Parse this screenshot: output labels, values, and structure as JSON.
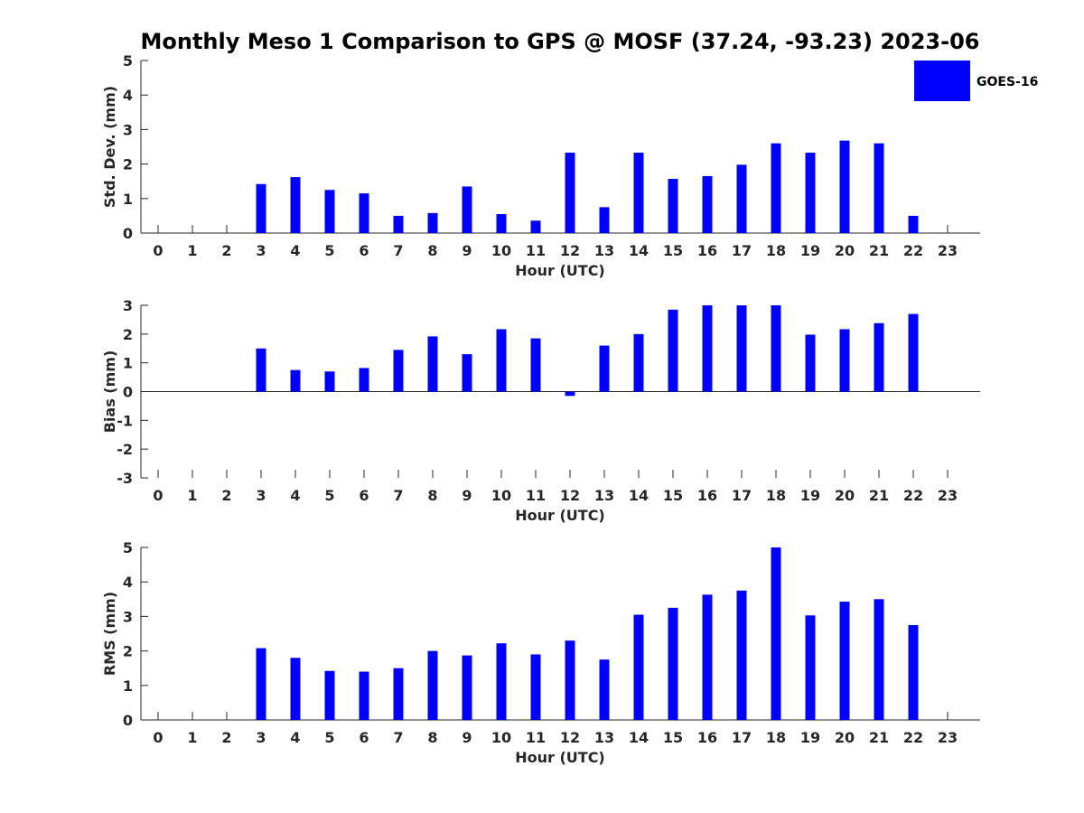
{
  "title": "Monthly Meso 1 Comparison to GPS @ MOSF (37.24, -93.23) 2023-06",
  "legend": {
    "label": "GOES-16",
    "color": "#0000ff",
    "placement": "top-right"
  },
  "bar_color": "#0000ff",
  "chart_data": [
    {
      "type": "bar",
      "xlabel": "Hour (UTC)",
      "ylabel": "Std. Dev. (mm)",
      "ylim": [
        0,
        5
      ],
      "yticks": [
        "0",
        "1",
        "2",
        "3",
        "4",
        "5"
      ],
      "categories": [
        "0",
        "1",
        "2",
        "3",
        "4",
        "5",
        "6",
        "7",
        "8",
        "9",
        "10",
        "11",
        "12",
        "13",
        "14",
        "15",
        "16",
        "17",
        "18",
        "19",
        "20",
        "21",
        "22",
        "23"
      ],
      "values": [
        null,
        null,
        null,
        1.42,
        1.62,
        1.25,
        1.15,
        0.5,
        0.58,
        1.35,
        0.55,
        0.36,
        2.33,
        0.75,
        2.33,
        1.57,
        1.65,
        1.98,
        2.6,
        2.33,
        2.68,
        2.6,
        0.5,
        null
      ]
    },
    {
      "type": "bar",
      "xlabel": "Hour (UTC)",
      "ylabel": "Bias (mm)",
      "ylim": [
        -3,
        3
      ],
      "yticks": [
        "-3",
        "-2",
        "-1",
        "0",
        "1",
        "2",
        "3"
      ],
      "categories": [
        "0",
        "1",
        "2",
        "3",
        "4",
        "5",
        "6",
        "7",
        "8",
        "9",
        "10",
        "11",
        "12",
        "13",
        "14",
        "15",
        "16",
        "17",
        "18",
        "19",
        "20",
        "21",
        "22",
        "23"
      ],
      "values": [
        null,
        null,
        null,
        1.5,
        0.75,
        0.7,
        0.82,
        1.45,
        1.92,
        1.3,
        2.17,
        1.85,
        -0.15,
        1.6,
        2.0,
        2.85,
        3.0,
        3.0,
        3.0,
        1.98,
        2.17,
        2.38,
        2.7,
        null
      ]
    },
    {
      "type": "bar",
      "xlabel": "Hour (UTC)",
      "ylabel": "RMS (mm)",
      "ylim": [
        0,
        5
      ],
      "yticks": [
        "0",
        "1",
        "2",
        "3",
        "4",
        "5"
      ],
      "categories": [
        "0",
        "1",
        "2",
        "3",
        "4",
        "5",
        "6",
        "7",
        "8",
        "9",
        "10",
        "11",
        "12",
        "13",
        "14",
        "15",
        "16",
        "17",
        "18",
        "19",
        "20",
        "21",
        "22",
        "23"
      ],
      "values": [
        null,
        null,
        null,
        2.08,
        1.8,
        1.42,
        1.4,
        1.5,
        2.0,
        1.87,
        2.22,
        1.9,
        2.3,
        1.75,
        3.05,
        3.25,
        3.63,
        3.75,
        5.0,
        3.03,
        3.43,
        3.5,
        2.75,
        null
      ]
    }
  ]
}
